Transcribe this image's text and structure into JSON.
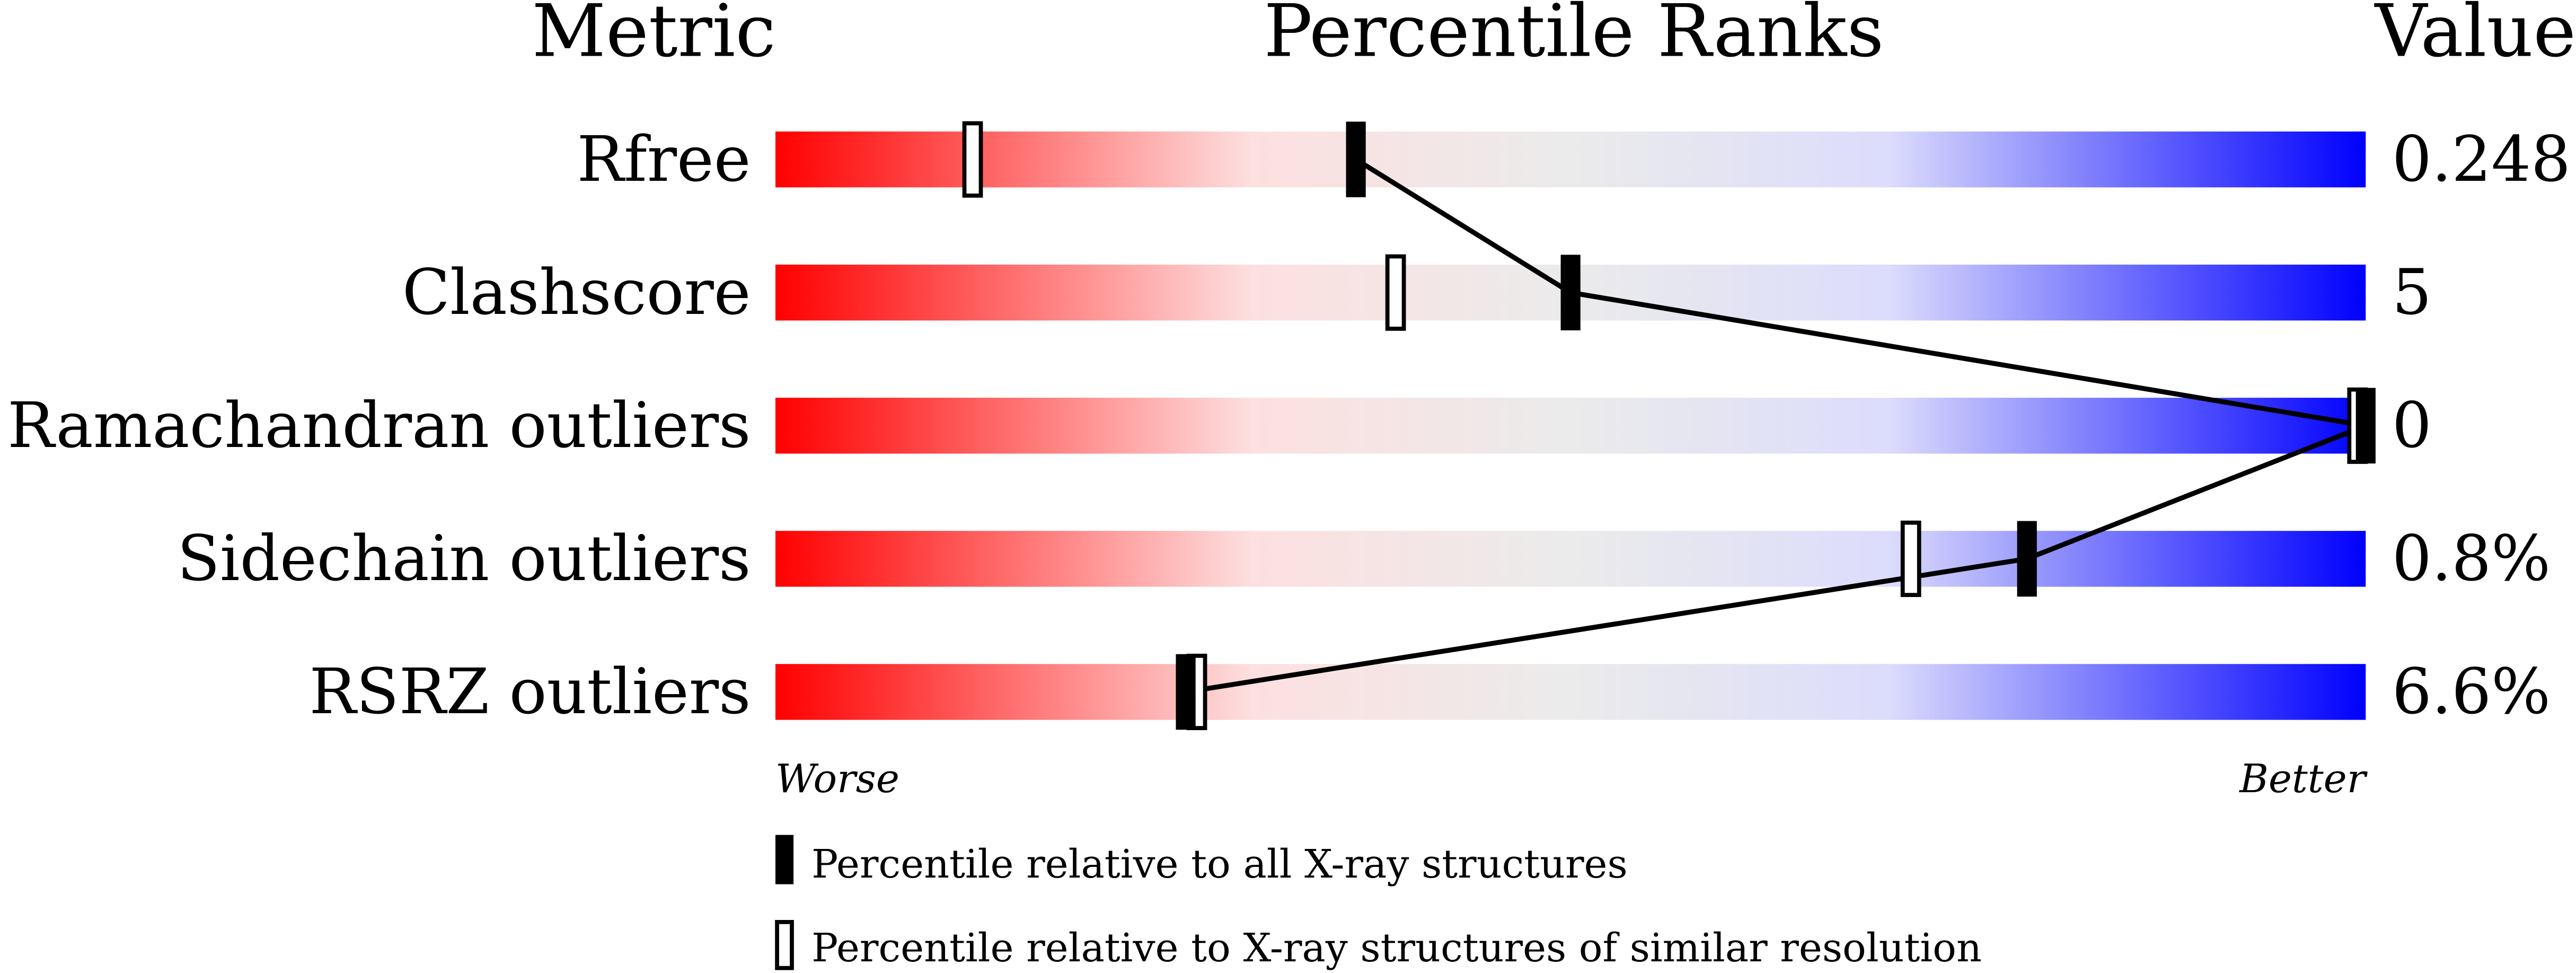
{
  "chart_data": {
    "type": "bar",
    "headers": {
      "metric": "Metric",
      "ranks": "Percentile Ranks",
      "value": "Value"
    },
    "xlim": [
      0,
      100
    ],
    "axis_labels": {
      "left": "Worse",
      "right": "Better"
    },
    "gradient_colors": [
      "#ff0000",
      "#fde0e0",
      "#ebebeb",
      "#dcdcfc",
      "#0000ff"
    ],
    "rows": [
      {
        "metric": "Rfree",
        "value": "0.248",
        "percentile_all": 36.5,
        "percentile_similar": 12.4
      },
      {
        "metric": "Clashscore",
        "value": "5",
        "percentile_all": 50,
        "percentile_similar": 39
      },
      {
        "metric": "Ramachandran outliers",
        "value": "0",
        "percentile_all": 100,
        "percentile_similar": 100
      },
      {
        "metric": "Sidechain outliers",
        "value": "0.8%",
        "percentile_all": 78.7,
        "percentile_similar": 71.4
      },
      {
        "metric": "RSRZ outliers",
        "value": "6.6%",
        "percentile_all": 25.8,
        "percentile_similar": 26.5
      }
    ],
    "legend": [
      {
        "marker": "filled",
        "label": "Percentile relative to all X-ray structures"
      },
      {
        "marker": "open",
        "label": "Percentile relative to X-ray structures of similar resolution"
      }
    ],
    "legend_placement": "bottom"
  }
}
